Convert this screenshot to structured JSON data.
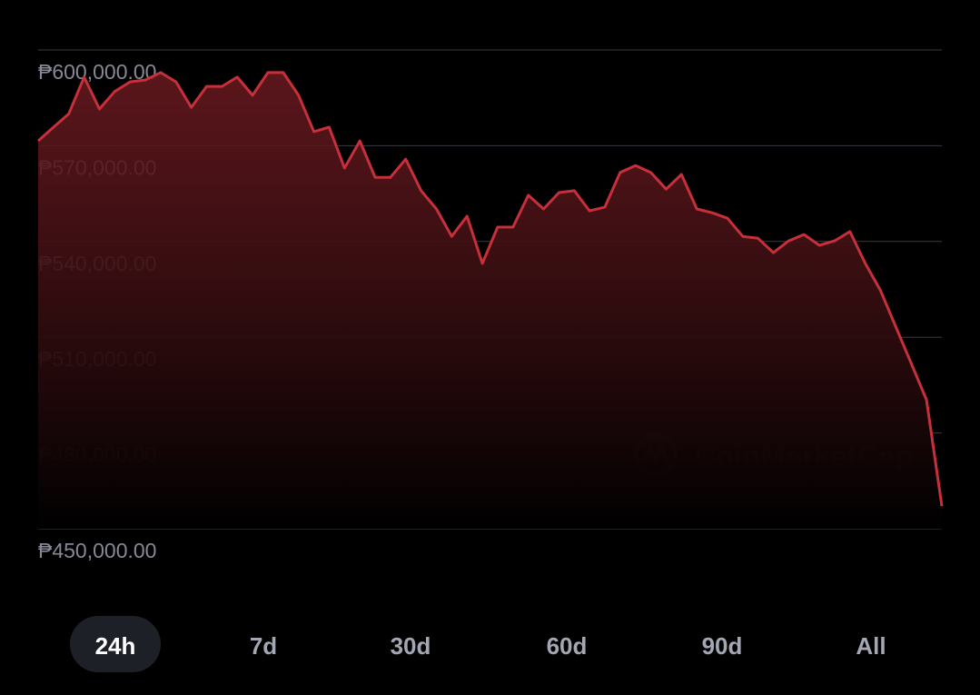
{
  "chart_data": {
    "type": "line",
    "series": [
      {
        "color": "#c7303a",
        "values": [
          571500,
          575800,
          580000,
          591500,
          581500,
          587000,
          590000,
          590600,
          592900,
          590000,
          582000,
          588600,
          588600,
          591500,
          585800,
          592900,
          592900,
          585800,
          574400,
          575800,
          563000,
          571500,
          560100,
          560100,
          565800,
          555900,
          550200,
          541600,
          547900,
          533100,
          544500,
          544500,
          554500,
          550200,
          555300,
          555900,
          549600,
          550800,
          561600,
          563800,
          561600,
          556400,
          561000,
          550200,
          549000,
          547300,
          541600,
          541000,
          536500,
          540200,
          542200,
          538800,
          540200,
          543100,
          533100,
          524600,
          513200,
          501800,
          490400,
          457100
        ]
      }
    ],
    "ylim": [
      450000,
      600000
    ],
    "yticks": [
      {
        "value": 450000,
        "label": "₱450,000.00"
      },
      {
        "value": 480000,
        "label": "₱480,000.00"
      },
      {
        "value": 510000,
        "label": "₱510,000.00"
      },
      {
        "value": 540000,
        "label": "₱540,000.00"
      },
      {
        "value": 570000,
        "label": "₱570,000.00"
      },
      {
        "value": 600000,
        "label": "₱600,000.00"
      }
    ],
    "grid": true,
    "watermark": "CoinMarketCap"
  },
  "tabs": {
    "items": [
      "24h",
      "7d",
      "30d",
      "60d",
      "90d",
      "All"
    ],
    "selected": "24h"
  }
}
